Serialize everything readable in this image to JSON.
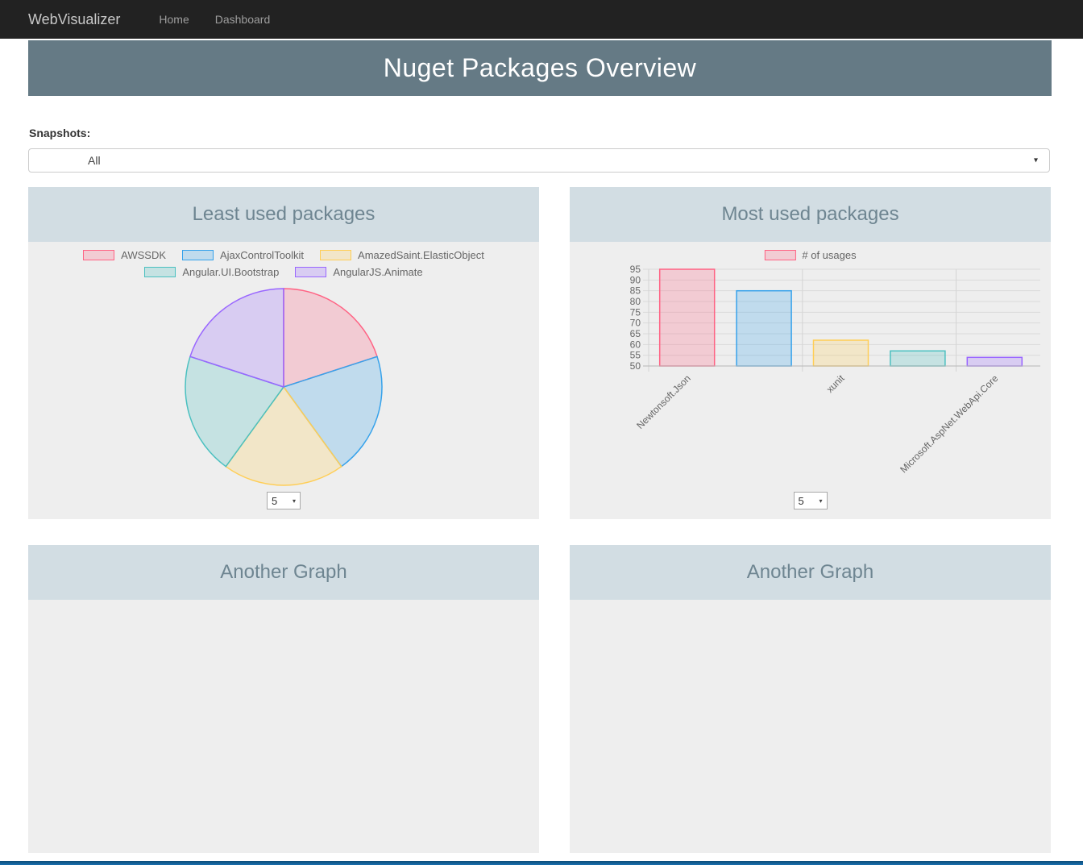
{
  "navbar": {
    "brand": "WebVisualizer",
    "items": [
      {
        "label": "Home"
      },
      {
        "label": "Dashboard"
      }
    ]
  },
  "header": {
    "title": "Nuget Packages Overview"
  },
  "filters": {
    "snapshots_label": "Snapshots:",
    "snapshots_value": "All"
  },
  "icons": {
    "chevron_down": "▾"
  },
  "panels": {
    "least_used": {
      "title": "Least used packages",
      "page_size": "5"
    },
    "most_used": {
      "title": "Most used packages",
      "page_size": "5"
    },
    "another_left": {
      "title": "Another Graph"
    },
    "another_right": {
      "title": "Another Graph"
    }
  },
  "chart_data": [
    {
      "type": "pie",
      "title": "Least used packages",
      "legend_position": "top",
      "labels": [
        "AWSSDK",
        "AjaxControlToolkit",
        "AmazedSaint.ElasticObject",
        "Angular.UI.Bootstrap",
        "AngularJS.Animate"
      ],
      "values": [
        1,
        1,
        1,
        1,
        1
      ],
      "border_colors": [
        "#ff6384",
        "#36a2eb",
        "#ffce56",
        "#4bc0c0",
        "#9966ff"
      ],
      "fill_colors": [
        "rgba(255,99,132,0.25)",
        "rgba(54,162,235,0.25)",
        "rgba(255,206,86,0.25)",
        "rgba(75,192,192,0.25)",
        "rgba(153,102,255,0.25)"
      ]
    },
    {
      "type": "bar",
      "title": "Most used packages",
      "legend": [
        "# of usages"
      ],
      "categories": [
        "Newtonsoft.Json",
        "",
        "xunit",
        "",
        "Microsoft.AspNet.WebApi.Core"
      ],
      "values": [
        95,
        85,
        62,
        57,
        54
      ],
      "ylim": [
        50,
        95
      ],
      "ytick_step": 5,
      "grid": true,
      "legend_position": "top",
      "border_colors": [
        "#ff6384",
        "#36a2eb",
        "#ffce56",
        "#4bc0c0",
        "#9966ff"
      ],
      "fill_colors": [
        "rgba(255,99,132,0.25)",
        "rgba(54,162,235,0.25)",
        "rgba(255,206,86,0.25)",
        "rgba(75,192,192,0.25)",
        "rgba(153,102,255,0.25)"
      ]
    }
  ],
  "theme": {
    "navbar_bg": "#222222",
    "hero_bg": "#657a85",
    "panel_header_bg": "#d2dde3",
    "panel_header_text": "#6e8591",
    "panel_body_bg": "#eeeeee",
    "bottom_bar": "#1a70ae"
  }
}
